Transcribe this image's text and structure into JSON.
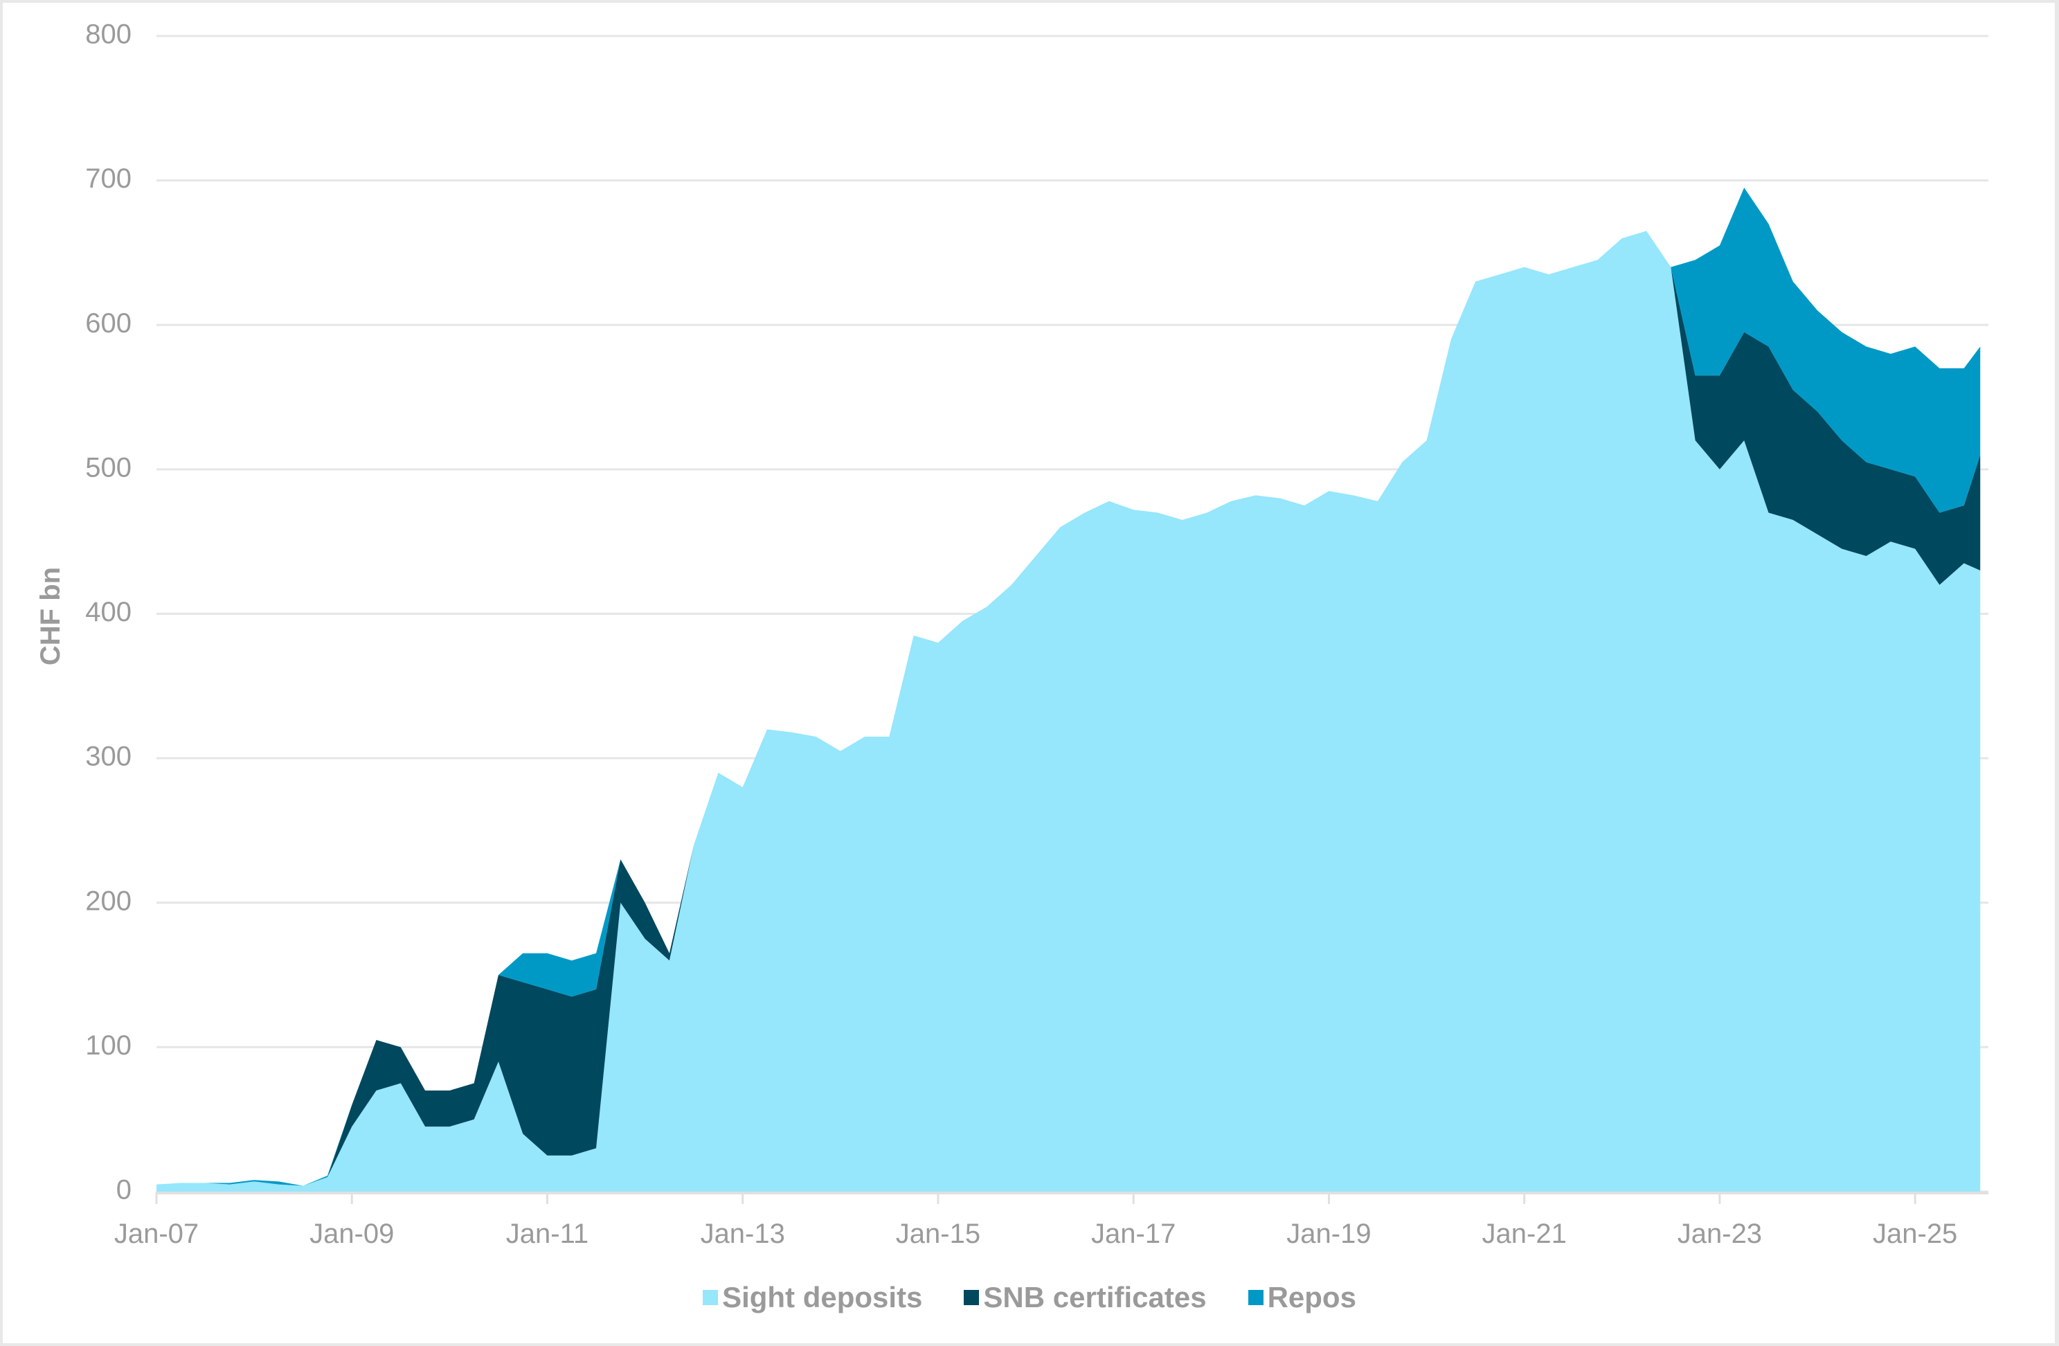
{
  "chart_data": {
    "type": "area",
    "stacked": true,
    "title": "",
    "xlabel": "",
    "ylabel": "CHF bn",
    "ylim": [
      0,
      800
    ],
    "yticks": [
      0,
      100,
      200,
      300,
      400,
      500,
      600,
      700,
      800
    ],
    "xtick_labels": [
      "Jan-07",
      "Jan-09",
      "Jan-11",
      "Jan-13",
      "Jan-15",
      "Jan-17",
      "Jan-19",
      "Jan-21",
      "Jan-23",
      "Jan-25"
    ],
    "grid": "horizontal",
    "legend_position": "bottom",
    "colors": {
      "sight_deposits": "#96E6FC",
      "snb_certificates": "#00485E",
      "repos": "#0099C6"
    },
    "x": [
      "2007-01",
      "2007-04",
      "2007-07",
      "2007-10",
      "2008-01",
      "2008-04",
      "2008-07",
      "2008-10",
      "2009-01",
      "2009-04",
      "2009-07",
      "2009-10",
      "2010-01",
      "2010-04",
      "2010-07",
      "2010-10",
      "2011-01",
      "2011-04",
      "2011-07",
      "2011-10",
      "2012-01",
      "2012-04",
      "2012-07",
      "2012-10",
      "2013-01",
      "2013-04",
      "2013-07",
      "2013-10",
      "2014-01",
      "2014-04",
      "2014-07",
      "2014-10",
      "2015-01",
      "2015-04",
      "2015-07",
      "2015-10",
      "2016-01",
      "2016-04",
      "2016-07",
      "2016-10",
      "2017-01",
      "2017-04",
      "2017-07",
      "2017-10",
      "2018-01",
      "2018-04",
      "2018-07",
      "2018-10",
      "2019-01",
      "2019-04",
      "2019-07",
      "2019-10",
      "2020-01",
      "2020-04",
      "2020-07",
      "2020-10",
      "2021-01",
      "2021-04",
      "2021-07",
      "2021-10",
      "2022-01",
      "2022-04",
      "2022-07",
      "2022-10",
      "2023-01",
      "2023-04",
      "2023-07",
      "2023-10",
      "2024-01",
      "2024-04",
      "2024-07",
      "2024-10",
      "2025-01",
      "2025-04",
      "2025-07",
      "2025-09"
    ],
    "series": [
      {
        "name": "Sight deposits",
        "values": [
          5,
          6,
          6,
          5,
          7,
          5,
          4,
          10,
          45,
          70,
          75,
          45,
          45,
          50,
          90,
          40,
          25,
          25,
          30,
          200,
          175,
          160,
          240,
          290,
          280,
          320,
          318,
          315,
          305,
          315,
          315,
          385,
          380,
          395,
          405,
          420,
          440,
          460,
          470,
          478,
          472,
          470,
          465,
          470,
          478,
          482,
          480,
          475,
          485,
          482,
          478,
          505,
          520,
          590,
          630,
          635,
          640,
          635,
          640,
          645,
          660,
          665,
          640,
          520,
          500,
          520,
          470,
          465,
          455,
          445,
          440,
          450,
          445,
          420,
          435,
          430
        ]
      },
      {
        "name": "SNB certificates",
        "values": [
          0,
          0,
          0,
          0,
          0,
          0,
          0,
          0,
          15,
          35,
          25,
          25,
          25,
          25,
          60,
          105,
          115,
          110,
          110,
          30,
          25,
          5,
          0,
          0,
          0,
          0,
          0,
          0,
          0,
          0,
          0,
          0,
          0,
          0,
          0,
          0,
          0,
          0,
          0,
          0,
          0,
          0,
          0,
          0,
          0,
          0,
          0,
          0,
          0,
          0,
          0,
          0,
          0,
          0,
          0,
          0,
          0,
          0,
          0,
          0,
          0,
          0,
          0,
          45,
          65,
          75,
          115,
          90,
          85,
          75,
          65,
          50,
          50,
          50,
          40,
          80
        ]
      },
      {
        "name": "Repos",
        "values": [
          0,
          0,
          0,
          1,
          1,
          2,
          0,
          1,
          0,
          0,
          0,
          0,
          0,
          0,
          0,
          20,
          25,
          25,
          25,
          0,
          0,
          0,
          0,
          0,
          0,
          0,
          0,
          0,
          0,
          0,
          0,
          0,
          0,
          0,
          0,
          0,
          0,
          0,
          0,
          0,
          0,
          0,
          0,
          0,
          0,
          0,
          0,
          0,
          0,
          0,
          0,
          0,
          0,
          0,
          0,
          0,
          0,
          0,
          0,
          0,
          0,
          0,
          0,
          80,
          90,
          100,
          85,
          75,
          70,
          75,
          80,
          80,
          90,
          100,
          95,
          75
        ]
      }
    ]
  },
  "axis": {
    "ylabel": "CHF bn",
    "yticks": [
      "0",
      "100",
      "200",
      "300",
      "400",
      "500",
      "600",
      "700",
      "800"
    ],
    "xticks": [
      "Jan-07",
      "Jan-09",
      "Jan-11",
      "Jan-13",
      "Jan-15",
      "Jan-17",
      "Jan-19",
      "Jan-21",
      "Jan-23",
      "Jan-25"
    ]
  },
  "legend": [
    {
      "label": "Sight deposits",
      "color": "#96E6FC"
    },
    {
      "label": "SNB certificates",
      "color": "#00485E"
    },
    {
      "label": "Repos",
      "color": "#0099C6"
    }
  ]
}
